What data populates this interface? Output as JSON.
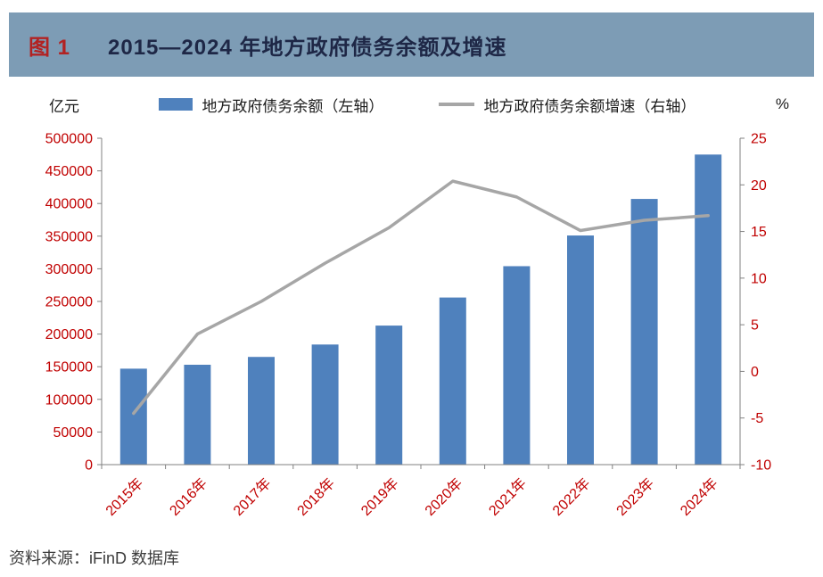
{
  "header": {
    "figure_label": "图 1",
    "title": "2015—2024 年地方政府债务余额及增速"
  },
  "footer": {
    "source": "资料来源：iFinD 数据库"
  },
  "chart_data": {
    "type": "bar",
    "subtype": "bar+line combo",
    "title": "2015—2024 年地方政府债务余额及增速",
    "categories": [
      "2015年",
      "2016年",
      "2017年",
      "2018年",
      "2019年",
      "2020年",
      "2021年",
      "2022年",
      "2023年",
      "2024年"
    ],
    "series": [
      {
        "name": "地方政府债务余额（左轴）",
        "type": "bar",
        "axis": "left",
        "color": "#4f81bd",
        "values": [
          147000,
          153000,
          165000,
          184000,
          213000,
          256000,
          304000,
          351000,
          407000,
          475000
        ]
      },
      {
        "name": "地方政府债务余额增速（右轴）",
        "type": "line",
        "axis": "right",
        "color": "#a6a6a6",
        "values": [
          -4.5,
          4.0,
          7.5,
          11.6,
          15.4,
          20.4,
          18.7,
          15.1,
          16.2,
          16.7
        ]
      }
    ],
    "left_axis": {
      "unit": "亿元",
      "min": 0,
      "max": 500000,
      "step": 50000
    },
    "right_axis": {
      "unit": "%",
      "min": -10,
      "max": 25,
      "step": 5
    },
    "legend_position": "top",
    "grid": false,
    "tick_label_color": "#c00000",
    "axis_line_color": "#808080"
  }
}
